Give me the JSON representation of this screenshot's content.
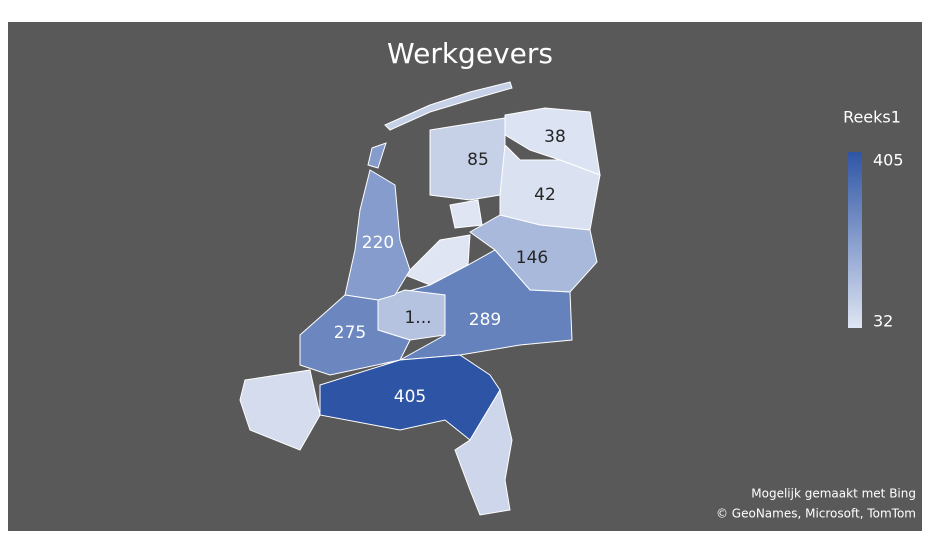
{
  "chart_data": {
    "type": "map",
    "title": "Werkgevers",
    "legend_title": "Reeks1",
    "values": [
      38,
      85,
      42,
      146,
      32,
      289,
      120,
      220,
      275,
      55,
      405,
      70
    ],
    "value_labels": [
      null,
      null,
      null,
      null,
      null,
      null,
      "1...",
      null,
      null,
      null,
      null,
      null
    ],
    "clim": [
      32,
      405
    ],
    "cticks": [
      405,
      32
    ],
    "min_color": "#dfe5f3",
    "max_color": "#2e55a5",
    "attribution": [
      "Mogelijk gemaakt met Bing",
      "© GeoNames, Microsoft, TomTom"
    ]
  }
}
